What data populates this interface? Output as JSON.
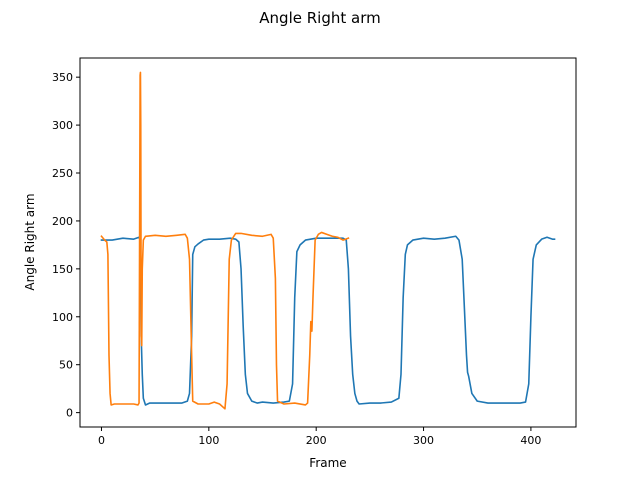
{
  "chart_data": {
    "type": "line",
    "title": "Angle Right arm",
    "xlabel": "Frame",
    "ylabel": "Angle Right arm",
    "xlim": [
      -20,
      442
    ],
    "ylim": [
      -15,
      370
    ],
    "xticks": [
      0,
      100,
      200,
      300,
      400
    ],
    "yticks": [
      0,
      50,
      100,
      150,
      200,
      250,
      300,
      350
    ],
    "grid": false,
    "legend": "none",
    "series": [
      {
        "color": "#1f77b4",
        "points": [
          [
            0,
            180
          ],
          [
            10,
            180
          ],
          [
            20,
            182
          ],
          [
            30,
            181
          ],
          [
            35,
            183
          ],
          [
            36,
            180
          ],
          [
            37,
            80
          ],
          [
            38,
            40
          ],
          [
            39,
            15
          ],
          [
            41,
            8
          ],
          [
            45,
            10
          ],
          [
            60,
            10
          ],
          [
            75,
            10
          ],
          [
            80,
            12
          ],
          [
            82,
            20
          ],
          [
            84,
            80
          ],
          [
            85,
            165
          ],
          [
            87,
            173
          ],
          [
            90,
            176
          ],
          [
            95,
            180
          ],
          [
            100,
            181
          ],
          [
            110,
            181
          ],
          [
            120,
            182
          ],
          [
            125,
            181
          ],
          [
            128,
            178
          ],
          [
            130,
            150
          ],
          [
            132,
            90
          ],
          [
            134,
            40
          ],
          [
            136,
            20
          ],
          [
            140,
            12
          ],
          [
            145,
            10
          ],
          [
            150,
            11
          ],
          [
            160,
            10
          ],
          [
            170,
            11
          ],
          [
            175,
            12
          ],
          [
            178,
            30
          ],
          [
            180,
            120
          ],
          [
            182,
            168
          ],
          [
            185,
            175
          ],
          [
            190,
            180
          ],
          [
            200,
            182
          ],
          [
            210,
            182
          ],
          [
            220,
            182
          ],
          [
            225,
            182
          ],
          [
            228,
            180
          ],
          [
            230,
            150
          ],
          [
            232,
            80
          ],
          [
            234,
            40
          ],
          [
            236,
            20
          ],
          [
            238,
            12
          ],
          [
            240,
            9
          ],
          [
            250,
            10
          ],
          [
            260,
            10
          ],
          [
            270,
            11
          ],
          [
            277,
            15
          ],
          [
            279,
            40
          ],
          [
            281,
            120
          ],
          [
            283,
            165
          ],
          [
            285,
            175
          ],
          [
            290,
            180
          ],
          [
            300,
            182
          ],
          [
            310,
            181
          ],
          [
            320,
            182
          ],
          [
            330,
            184
          ],
          [
            333,
            180
          ],
          [
            336,
            160
          ],
          [
            338,
            110
          ],
          [
            340,
            60
          ],
          [
            341,
            42
          ],
          [
            342,
            38
          ],
          [
            345,
            20
          ],
          [
            350,
            12
          ],
          [
            360,
            10
          ],
          [
            370,
            10
          ],
          [
            380,
            10
          ],
          [
            390,
            10
          ],
          [
            395,
            11
          ],
          [
            398,
            30
          ],
          [
            400,
            100
          ],
          [
            402,
            160
          ],
          [
            405,
            175
          ],
          [
            410,
            181
          ],
          [
            415,
            183
          ],
          [
            420,
            181
          ],
          [
            422,
            181
          ]
        ]
      },
      {
        "color": "#ff7f0e",
        "points": [
          [
            0,
            184
          ],
          [
            3,
            180
          ],
          [
            5,
            178
          ],
          [
            6,
            165
          ],
          [
            7,
            60
          ],
          [
            8,
            20
          ],
          [
            9,
            8
          ],
          [
            12,
            9
          ],
          [
            20,
            9
          ],
          [
            30,
            9
          ],
          [
            34,
            8
          ],
          [
            35,
            10
          ],
          [
            36,
            352
          ],
          [
            36.3,
            355
          ],
          [
            36.6,
            300
          ],
          [
            37,
            80
          ],
          [
            37.5,
            70
          ],
          [
            38,
            150
          ],
          [
            39,
            180
          ],
          [
            41,
            184
          ],
          [
            50,
            185
          ],
          [
            60,
            184
          ],
          [
            70,
            185
          ],
          [
            78,
            186
          ],
          [
            80,
            182
          ],
          [
            82,
            160
          ],
          [
            84,
            60
          ],
          [
            85,
            12
          ],
          [
            90,
            9
          ],
          [
            100,
            9
          ],
          [
            105,
            11
          ],
          [
            110,
            9
          ],
          [
            115,
            4
          ],
          [
            117,
            30
          ],
          [
            119,
            160
          ],
          [
            121,
            180
          ],
          [
            125,
            187
          ],
          [
            130,
            187
          ],
          [
            140,
            185
          ],
          [
            150,
            184
          ],
          [
            158,
            186
          ],
          [
            160,
            182
          ],
          [
            162,
            140
          ],
          [
            163,
            50
          ],
          [
            164,
            12
          ],
          [
            170,
            9
          ],
          [
            180,
            10
          ],
          [
            190,
            8
          ],
          [
            192,
            10
          ],
          [
            194,
            60
          ],
          [
            195,
            95
          ],
          [
            196,
            85
          ],
          [
            197,
            120
          ],
          [
            199,
            180
          ],
          [
            202,
            186
          ],
          [
            205,
            188
          ],
          [
            210,
            186
          ],
          [
            215,
            184
          ],
          [
            220,
            183
          ],
          [
            225,
            180
          ],
          [
            230,
            182
          ]
        ]
      }
    ]
  }
}
